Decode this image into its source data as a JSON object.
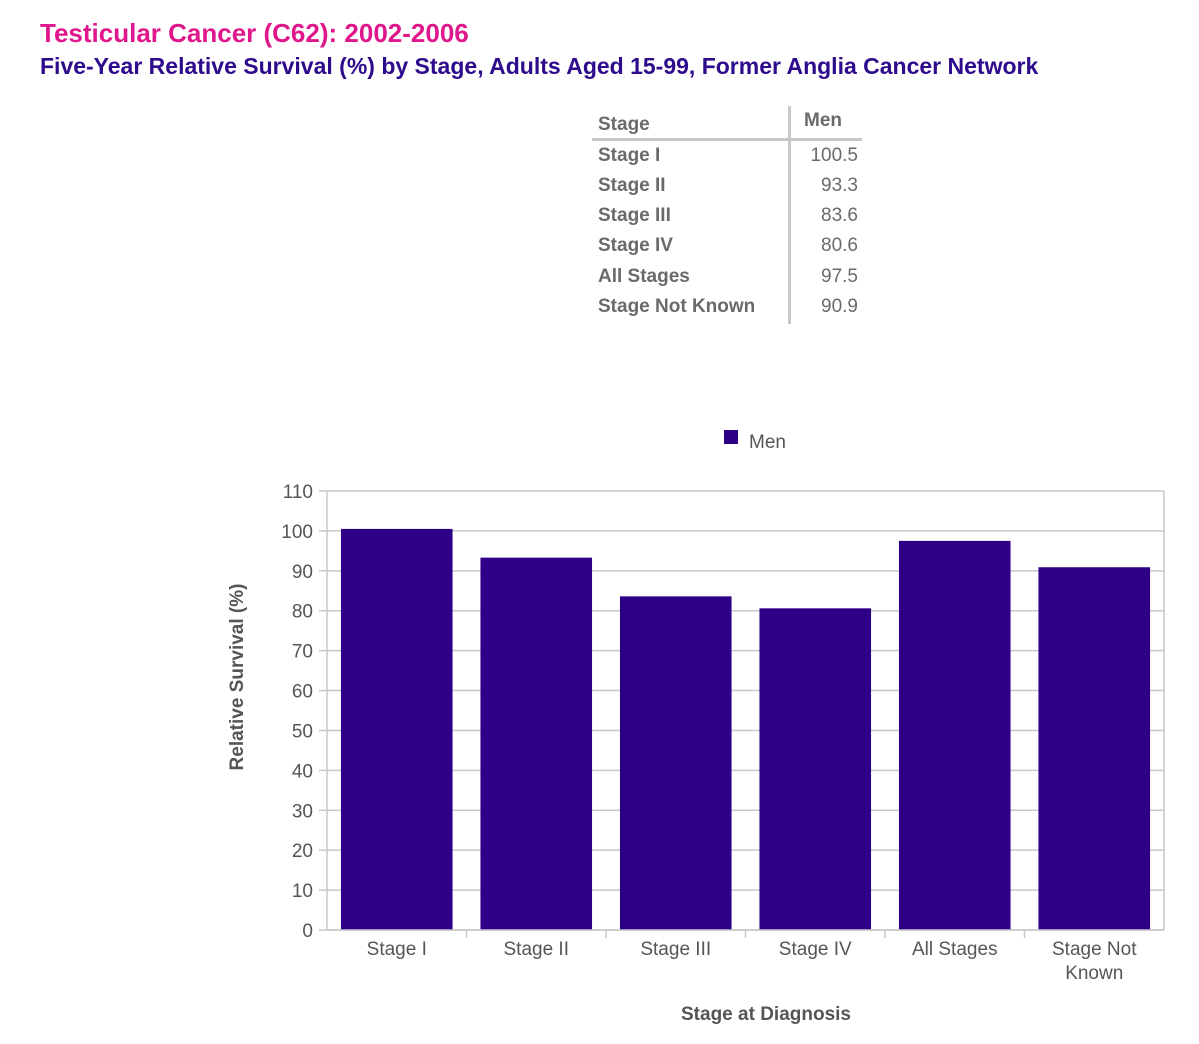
{
  "title": "Testicular Cancer (C62): 2002-2006",
  "subtitle": "Five-Year Relative Survival (%) by Stage, Adults Aged 15-99, Former Anglia Cancer Network",
  "table": {
    "headers": [
      "Stage",
      "Men"
    ],
    "rows": [
      {
        "stage": "Stage I",
        "men": "100.5"
      },
      {
        "stage": "Stage II",
        "men": "93.3"
      },
      {
        "stage": "Stage III",
        "men": "83.6"
      },
      {
        "stage": "Stage IV",
        "men": "80.6"
      },
      {
        "stage": "All Stages",
        "men": "97.5"
      },
      {
        "stage": "Stage Not Known",
        "men": "90.9"
      }
    ]
  },
  "chart_data": {
    "type": "bar",
    "categories": [
      "Stage I",
      "Stage II",
      "Stage III",
      "Stage IV",
      "All Stages",
      "Stage Not Known"
    ],
    "category_lines": [
      [
        "Stage I"
      ],
      [
        "Stage II"
      ],
      [
        "Stage III"
      ],
      [
        "Stage IV"
      ],
      [
        "All Stages"
      ],
      [
        "Stage Not",
        "Known"
      ]
    ],
    "series": [
      {
        "name": "Men",
        "values": [
          100.5,
          93.3,
          83.6,
          80.6,
          97.5,
          90.9
        ],
        "color": "#2e0087"
      }
    ],
    "xlabel": "Stage at Diagnosis",
    "ylabel": "Relative Survival (%)",
    "ylim": [
      0,
      110
    ],
    "yticks": [
      0,
      10,
      20,
      30,
      40,
      50,
      60,
      70,
      80,
      90,
      100,
      110
    ],
    "grid": true,
    "legend": "top-center"
  },
  "colors": {
    "title": "#e0168c",
    "subtitle": "#2e0a8c",
    "bar": "#2e0087",
    "grid": "#c8c8c8",
    "text": "#555555"
  }
}
